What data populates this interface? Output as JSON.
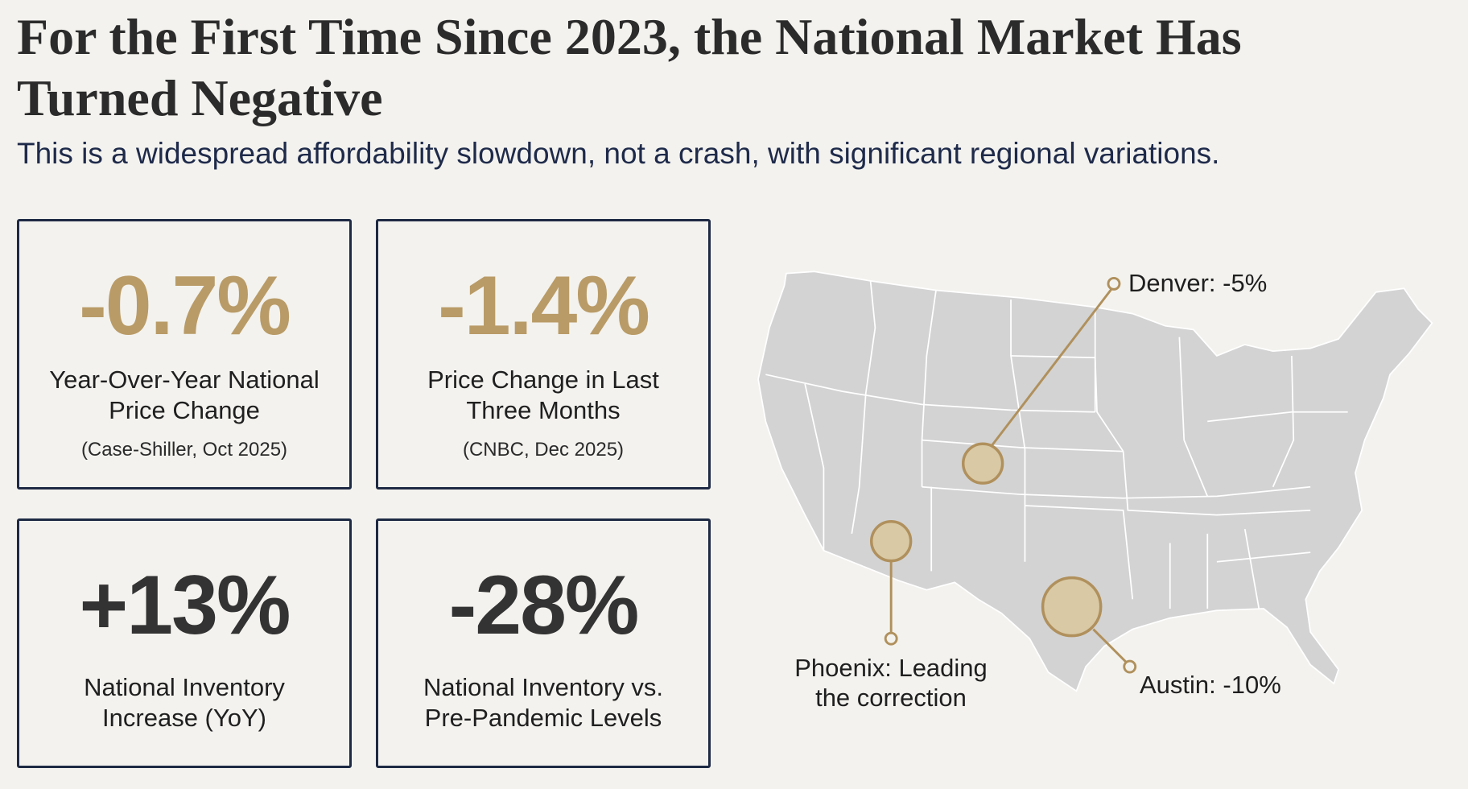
{
  "header": {
    "title": "For the First Time Since 2023, the National Market Has Turned Negative",
    "subtitle": "This is a widespread affordability slowdown, not a crash, with significant regional variations."
  },
  "stats": [
    {
      "value": "-0.7%",
      "label": "Year-Over-Year National Price Change",
      "source": "(Case-Shiller, Oct 2025)"
    },
    {
      "value": "-1.4%",
      "label": "Price Change in Last Three Months",
      "source": "(CNBC, Dec 2025)"
    },
    {
      "value": "+13%",
      "label": "National Inventory Increase (YoY)"
    },
    {
      "value": "-28%",
      "label": "National Inventory vs. Pre-Pandemic Levels"
    }
  ],
  "map": {
    "callouts": [
      {
        "city": "Denver",
        "text": "Denver: -5%"
      },
      {
        "city": "Phoenix",
        "line1": "Phoenix: Leading",
        "line2": "the correction"
      },
      {
        "city": "Austin",
        "text": "Austin: -10%"
      }
    ]
  },
  "colors": {
    "accent_gold": "#b99b67",
    "border_navy": "#1e2a44",
    "map_gray": "#d3d3d3",
    "background": "#f3f2ee"
  }
}
